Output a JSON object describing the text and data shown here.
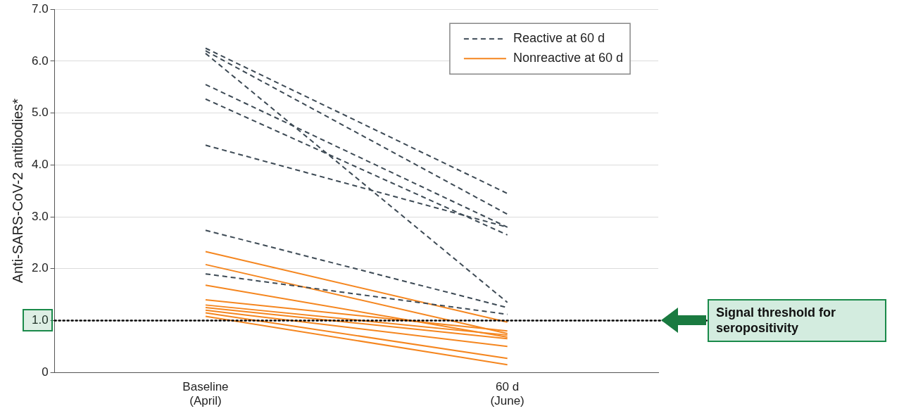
{
  "chart_data": {
    "type": "line",
    "categories": [
      "Baseline\n(April)",
      "60 d\n(June)"
    ],
    "ylabel": "Anti-SARS-CoV-2 antibodies*",
    "ylim": [
      0,
      7
    ],
    "yticks": [
      0,
      {
        "value": 1,
        "label": "1.0"
      },
      {
        "value": 2,
        "label": "2.0"
      },
      {
        "value": 3,
        "label": "3.0"
      },
      {
        "value": 4,
        "label": "4.0"
      },
      {
        "value": 5,
        "label": "5.0"
      },
      {
        "value": 6,
        "label": "6.0"
      },
      {
        "value": 7,
        "label": "7.0"
      }
    ],
    "grid": "y",
    "legend": "top right",
    "marker": "none",
    "series": [
      {
        "name": "Reactive at 60 d",
        "color": "#3d4a55",
        "line_style": "dashed",
        "values": [
          6.25,
          3.45
        ]
      },
      {
        "color": "#3d4a55",
        "line_style": "dashed",
        "values": [
          6.2,
          3.05
        ]
      },
      {
        "color": "#3d4a55",
        "line_style": "dashed",
        "values": [
          6.15,
          1.35
        ]
      },
      {
        "color": "#3d4a55",
        "line_style": "dashed",
        "values": [
          5.55,
          2.8
        ]
      },
      {
        "color": "#3d4a55",
        "line_style": "dashed",
        "values": [
          5.27,
          2.65
        ]
      },
      {
        "color": "#3d4a55",
        "line_style": "dashed",
        "values": [
          4.38,
          2.8
        ]
      },
      {
        "color": "#3d4a55",
        "line_style": "dashed",
        "values": [
          2.74,
          1.25
        ]
      },
      {
        "color": "#3d4a55",
        "line_style": "dashed",
        "values": [
          1.9,
          1.12
        ]
      },
      {
        "name": "Nonreactive at 60 d",
        "color": "#f5861f",
        "line_style": "solid",
        "values": [
          2.33,
          0.97
        ]
      },
      {
        "color": "#f5861f",
        "line_style": "solid",
        "values": [
          2.08,
          0.75
        ]
      },
      {
        "color": "#f5861f",
        "line_style": "solid",
        "values": [
          1.68,
          0.68
        ]
      },
      {
        "color": "#f5861f",
        "line_style": "solid",
        "values": [
          1.4,
          0.8
        ]
      },
      {
        "color": "#f5861f",
        "line_style": "solid",
        "values": [
          1.3,
          0.72
        ]
      },
      {
        "color": "#f5861f",
        "line_style": "solid",
        "values": [
          1.25,
          0.65
        ]
      },
      {
        "color": "#f5861f",
        "line_style": "solid",
        "values": [
          1.2,
          0.5
        ]
      },
      {
        "color": "#f5861f",
        "line_style": "solid",
        "values": [
          1.15,
          0.27
        ]
      },
      {
        "color": "#f5861f",
        "line_style": "solid",
        "values": [
          1.08,
          0.15
        ]
      }
    ],
    "ref_lines": [
      {
        "axis": "y",
        "value": 1,
        "label": "Signal threshold for seropositivity",
        "color": "#000000",
        "line_style": "dotted"
      }
    ]
  }
}
